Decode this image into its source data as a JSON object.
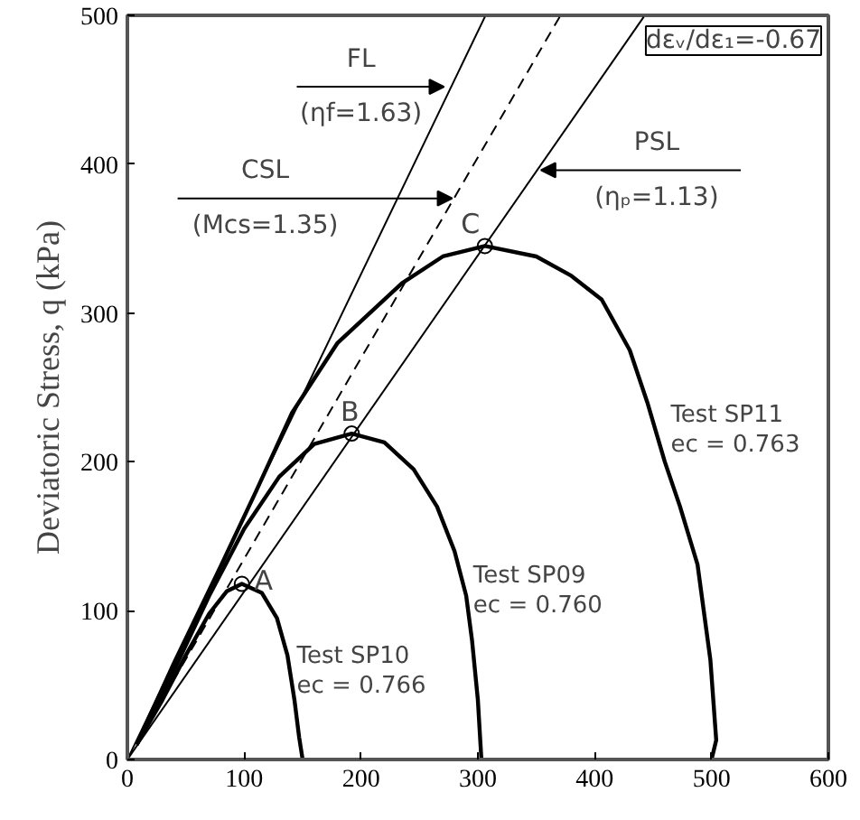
{
  "chart_data": {
    "type": "line",
    "ylabel": "Deviatoric Stress, q (kPa)",
    "xlim": [
      0,
      600
    ],
    "ylim": [
      0,
      500
    ],
    "xticks": [
      0,
      100,
      200,
      300,
      400,
      500,
      600
    ],
    "yticks": [
      0,
      100,
      200,
      300,
      400,
      500
    ],
    "grid": false,
    "series": [
      {
        "color": "#000000",
        "line_style": "solid",
        "marker": "none",
        "x": [
          0,
          306
        ],
        "values": [
          0,
          499
        ]
      },
      {
        "color": "#000000",
        "line_style": "dashed",
        "marker": "none",
        "x": [
          0,
          370
        ],
        "values": [
          0,
          499
        ]
      },
      {
        "color": "#000000",
        "line_style": "solid",
        "marker": "none",
        "x": [
          0,
          442
        ],
        "values": [
          0,
          499
        ]
      },
      {
        "color": "#000000",
        "line_style": "solid",
        "marker": "none",
        "x": [
          8,
          30,
          50,
          70,
          85,
          98,
          115,
          128,
          137,
          143,
          147,
          150
        ],
        "values": [
          10,
          40,
          70,
          98,
          113,
          118,
          112,
          95,
          70,
          40,
          15,
          0
        ]
      },
      {
        "color": "#000000",
        "line_style": "solid",
        "marker": "none",
        "x": [
          8,
          40,
          70,
          100,
          130,
          160,
          192,
          220,
          245,
          265,
          280,
          290,
          295,
          300,
          303
        ],
        "values": [
          10,
          60,
          110,
          155,
          190,
          212,
          219,
          213,
          195,
          170,
          140,
          110,
          80,
          40,
          0
        ]
      },
      {
        "color": "#000000",
        "line_style": "solid",
        "marker": "none",
        "x": [
          8,
          40,
          80,
          110,
          141,
          180,
          235,
          270,
          306,
          350,
          380,
          406,
          430,
          445,
          460,
          473,
          488,
          499,
          504,
          500
        ],
        "values": [
          10,
          65,
          130,
          180,
          233,
          280,
          320,
          338,
          345,
          338,
          325,
          309,
          275,
          240,
          200,
          170,
          131,
          67,
          13,
          0
        ]
      },
      {
        "type": "scatter",
        "color": "#000000",
        "marker": "circle",
        "x": [
          98,
          192,
          306
        ],
        "values": [
          118,
          219,
          345
        ],
        "value_labels": [
          "A",
          "B",
          "C"
        ]
      }
    ],
    "annotations": [
      {
        "text": "FL\n(ηf=1.63)",
        "x": 271,
        "y": 452
      },
      {
        "text": "CSL\n(Mcs=1.35)",
        "x": 278,
        "y": 377
      },
      {
        "text": "PSL\n(ηₚ=1.13)",
        "x": 354,
        "y": 396
      },
      "Test SP10\nec = 0.766",
      "Test SP09\nec = 0.760",
      "Test SP11\nec = 0.763",
      "dεᵥ/dε₁=-0.67"
    ]
  }
}
